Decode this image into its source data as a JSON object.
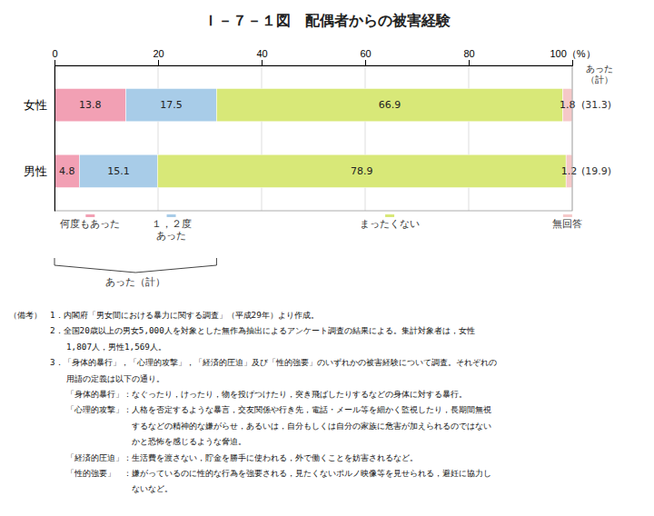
{
  "chart_data": {
    "type": "bar",
    "orientation": "horizontal",
    "stacked": true,
    "data_labels": true,
    "grid": true,
    "title": "Ｉ－７－１図　配偶者からの被害経験",
    "categories": [
      "女性",
      "男性"
    ],
    "series": [
      {
        "name": "何度もあった",
        "color": "#f2a0b4",
        "values": [
          13.8,
          4.8
        ]
      },
      {
        "name": "１，２度\nあった",
        "color": "#a8cce8",
        "values": [
          17.5,
          15.1
        ]
      },
      {
        "name": "まったくない",
        "color": "#d8e878",
        "values": [
          66.9,
          78.9
        ]
      },
      {
        "name": "無回答",
        "color": "#f5c8c8",
        "values": [
          1.8,
          1.2
        ]
      }
    ],
    "xlim": [
      0,
      100
    ],
    "xticks": [
      0,
      20,
      40,
      60,
      80,
      {
        "value": 100,
        "label": "100（%）"
      }
    ],
    "totals": {
      "title": "あった\n（計）",
      "values": [
        31.3,
        19.9
      ],
      "value_labels": [
        "(31.3)",
        "(19.9)"
      ]
    },
    "annotations": [
      "あった（計）"
    ],
    "notes": [
      "（備考）　1．内閣府「男女間における暴力に関する調査」（平成29年）より作成。",
      "　　　　　2．全国20歳以上の男女5,000人を対象とした無作為抽出によるアンケート調査の結果による。集計対象者は，女性",
      "　　　　　　　1,807人，男性1,569人。",
      "　　　　　3．「身体的暴行」，「心理的攻撃」，「経済的圧迫」及び「性的強要」のいずれかの被害経験について調査。それぞれの",
      "　　　　　　　用語の定義は以下の通り。",
      "　　　　　　　「身体的暴行」：なぐったり，けったり，物を投げつけたり，突き飛ばしたりするなどの身体に対する暴行。",
      "　　　　　　　「心理的攻撃」：人格を否定するような暴言，交友関係や行き先，電話・メール等を細かく監視したり，長期間無視",
      "　　　　　　　　　　　　　　　するなどの精神的な嫌がらせ，あるいは，自分もしくは自分の家族に危害が加えられるのではない",
      "　　　　　　　　　　　　　　　かと恐怖を感じるような脅迫。",
      "　　　　　　　「経済的圧迫」：生活費を渡さない，貯金を勝手に使われる，外で働くことを妨害されるなど。",
      "　　　　　　　「性的強要」　：嫌がっているのに性的な行為を強要される，見たくないポルノ映像等を見せられる，避妊に協力し",
      "　　　　　　　　　　　　　　　ないなど。"
    ]
  }
}
